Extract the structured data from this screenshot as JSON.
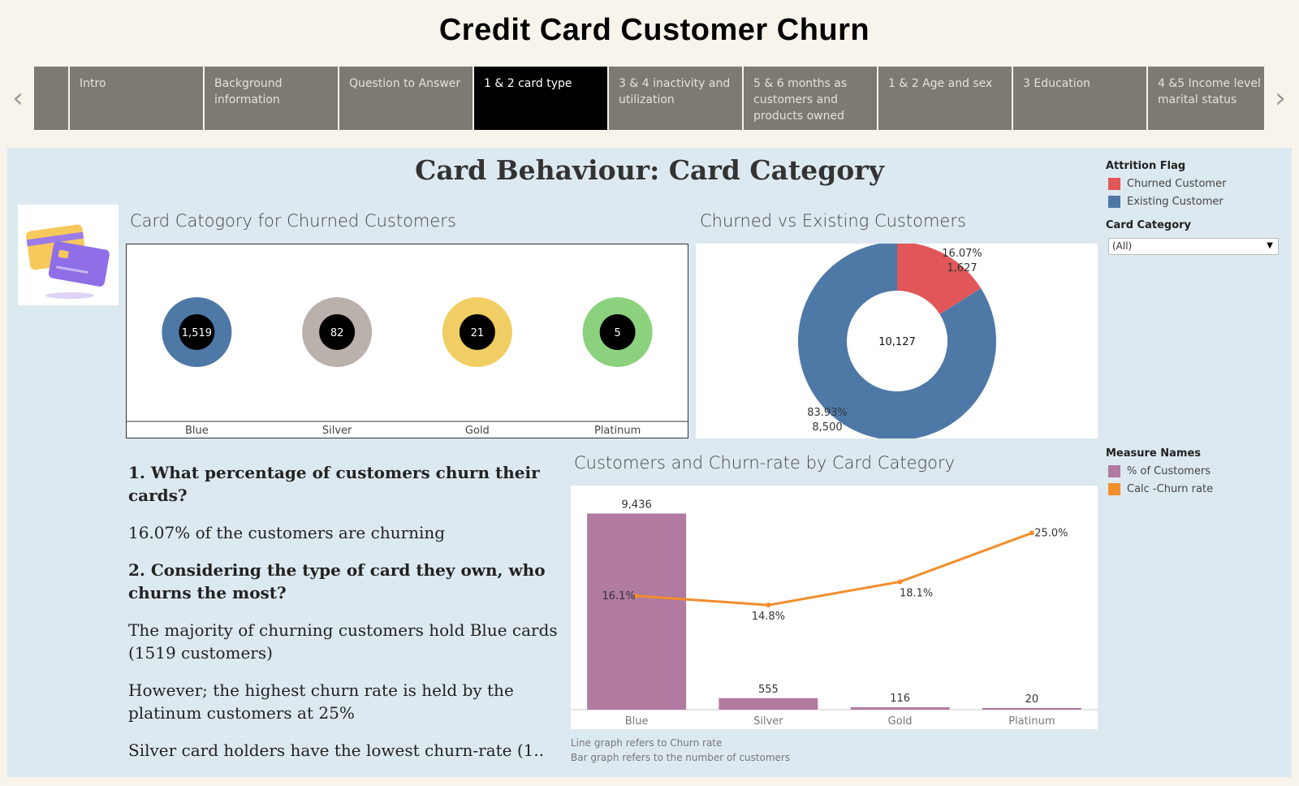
{
  "header": {
    "title": "Credit Card Customer Churn"
  },
  "nav": {
    "prev_icon": "chevron-left-icon",
    "next_icon": "chevron-right-icon",
    "tabs": [
      {
        "label": ""
      },
      {
        "label": "Intro"
      },
      {
        "label": "Background information"
      },
      {
        "label": "Question to Answer"
      },
      {
        "label": "1 & 2 card type",
        "active": true
      },
      {
        "label": "3  & 4 inactivity and utilization"
      },
      {
        "label": "5 & 6 months as customers and products owned"
      },
      {
        "label": "1 & 2 Age and sex"
      },
      {
        "label": "3 Education"
      },
      {
        "label": "4 &5 Income level and marital status"
      }
    ]
  },
  "dashboard": {
    "title": "Card Behaviour: Card Category",
    "illustration_icon": "credit-card-icon"
  },
  "legend_attrition": {
    "title": "Attrition Flag",
    "items": [
      {
        "label": "Churned Customer",
        "color": "#e15759"
      },
      {
        "label": "Existing Customer",
        "color": "#4e79a7"
      }
    ]
  },
  "filter": {
    "title": "Card Category",
    "selected": "(All)"
  },
  "legend_measures": {
    "title": "Measure Names",
    "items": [
      {
        "label": "% of Customers",
        "color": "#b07aa1"
      },
      {
        "label": "Calc -Churn rate",
        "color": "#f28e2b"
      }
    ]
  },
  "chart_data": [
    {
      "type": "bubble",
      "title": "Card Catogory for Churned Customers",
      "categories": [
        "Blue",
        "Silver",
        "Gold",
        "Platinum"
      ],
      "values": [
        1519,
        82,
        21,
        5
      ],
      "value_labels": [
        "1,519",
        "82",
        "21",
        "5"
      ],
      "colors": [
        "#4e79a7",
        "#bab0ac",
        "#f1ce63",
        "#8cd17d"
      ]
    },
    {
      "type": "pie",
      "title": "Churned vs Existing Customers",
      "slices": [
        {
          "name": "Churned Customer",
          "value": 1627,
          "label": "1,627",
          "percent": "16.07%",
          "color": "#e15759"
        },
        {
          "name": "Existing Customer",
          "value": 8500,
          "label": "8,500",
          "percent": "83.93%",
          "color": "#4e79a7"
        }
      ],
      "center_label": "10,127"
    },
    {
      "type": "bar",
      "title": "Customers and Churn-rate by Card Category",
      "categories": [
        "Blue",
        "Silver",
        "Gold",
        "Platinum"
      ],
      "series": [
        {
          "name": "% of Customers",
          "kind": "bar",
          "values": [
            9436,
            555,
            116,
            20
          ],
          "labels": [
            "9,436",
            "555",
            "116",
            "20"
          ],
          "color": "#b07aa1"
        },
        {
          "name": "Calc -Churn rate",
          "kind": "line",
          "values": [
            16.1,
            14.8,
            18.1,
            25.0
          ],
          "labels": [
            "16.1%",
            "14.8%",
            "18.1%",
            "25.0%"
          ],
          "color": "#f28e2b"
        }
      ],
      "bar_ylim": [
        0,
        10000
      ],
      "line_ylim": [
        0,
        30
      ],
      "footnotes": [
        "Line graph refers to Churn rate",
        "Bar graph refers to the number of customers"
      ]
    }
  ],
  "text": {
    "q1": "1. What percentage of customers churn their cards?",
    "a1": " 16.07% of the customers are churning",
    "q2": "2. Considering the type of card they own, who churns the most?",
    "a2": "The majority of churning customers hold Blue cards (1519 customers)",
    "a3": "However; the highest churn rate is held by the platinum customers at 25%",
    "a4": "Silver card holders have the lowest churn-rate (1.."
  }
}
